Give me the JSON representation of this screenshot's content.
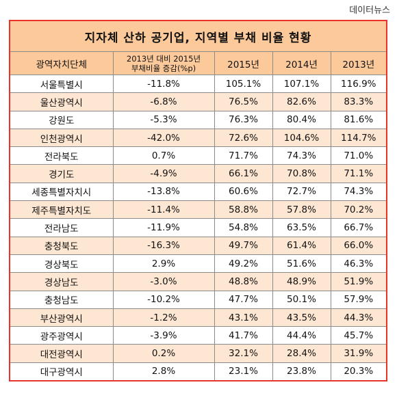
{
  "source": "데이터뉴스",
  "table": {
    "title": "지자체 산하 공기업, 지역별 부채 비율 현황",
    "headers": {
      "region": "광역자치단체",
      "change_line1": "2013년 대비 2015년",
      "change_line2": "부채비율 증감(%p)",
      "y2015": "2015년",
      "y2014": "2014년",
      "y2013": "2013년"
    },
    "rows": [
      {
        "region": "서울특별시",
        "change": "-11.8%",
        "y2015": "105.1%",
        "y2014": "107.1%",
        "y2013": "116.9%"
      },
      {
        "region": "울산광역시",
        "change": "-6.8%",
        "y2015": "76.5%",
        "y2014": "82.6%",
        "y2013": "83.3%"
      },
      {
        "region": "강원도",
        "change": "-5.3%",
        "y2015": "76.3%",
        "y2014": "80.4%",
        "y2013": "81.6%"
      },
      {
        "region": "인천광역시",
        "change": "-42.0%",
        "y2015": "72.6%",
        "y2014": "104.6%",
        "y2013": "114.7%"
      },
      {
        "region": "전라북도",
        "change": "0.7%",
        "y2015": "71.7%",
        "y2014": "74.3%",
        "y2013": "71.0%"
      },
      {
        "region": "경기도",
        "change": "-4.9%",
        "y2015": "66.1%",
        "y2014": "70.8%",
        "y2013": "71.1%"
      },
      {
        "region": "세종특별자치시",
        "change": "-13.8%",
        "y2015": "60.6%",
        "y2014": "72.7%",
        "y2013": "74.3%"
      },
      {
        "region": "제주특별자치도",
        "change": "-11.4%",
        "y2015": "58.8%",
        "y2014": "57.8%",
        "y2013": "70.2%"
      },
      {
        "region": "전라남도",
        "change": "-11.9%",
        "y2015": "54.8%",
        "y2014": "63.5%",
        "y2013": "66.7%"
      },
      {
        "region": "충청북도",
        "change": "-16.3%",
        "y2015": "49.7%",
        "y2014": "61.4%",
        "y2013": "66.0%"
      },
      {
        "region": "경상북도",
        "change": "2.9%",
        "y2015": "49.2%",
        "y2014": "51.6%",
        "y2013": "46.3%"
      },
      {
        "region": "경상남도",
        "change": "-3.0%",
        "y2015": "48.8%",
        "y2014": "48.9%",
        "y2013": "51.9%"
      },
      {
        "region": "충청남도",
        "change": "-10.2%",
        "y2015": "47.7%",
        "y2014": "50.1%",
        "y2013": "57.9%"
      },
      {
        "region": "부산광역시",
        "change": "-1.2%",
        "y2015": "43.1%",
        "y2014": "43.5%",
        "y2013": "44.3%"
      },
      {
        "region": "광주광역시",
        "change": "-3.9%",
        "y2015": "41.7%",
        "y2014": "44.4%",
        "y2013": "45.7%"
      },
      {
        "region": "대전광역시",
        "change": "0.2%",
        "y2015": "32.1%",
        "y2014": "28.4%",
        "y2013": "31.9%"
      },
      {
        "region": "대구광역시",
        "change": "2.8%",
        "y2015": "23.1%",
        "y2014": "23.8%",
        "y2013": "20.3%"
      }
    ]
  },
  "colors": {
    "border": "#e8322a",
    "header_bg": "#fbc99a",
    "alt_row_bg": "#fde6d2",
    "row_bg": "#ffffff"
  }
}
